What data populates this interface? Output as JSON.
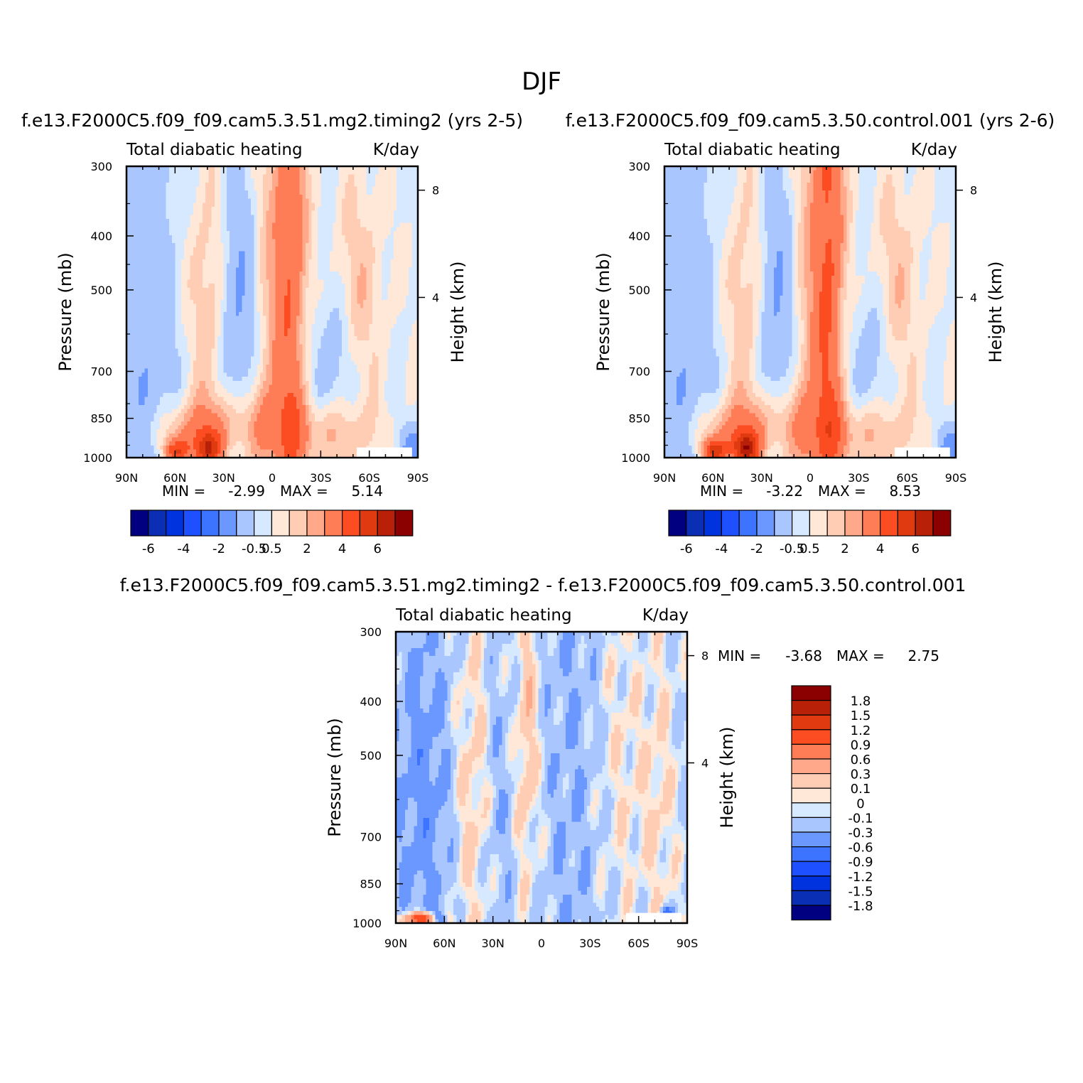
{
  "page_title": "DJF",
  "colors": {
    "scale": [
      "#000080",
      "#0a2fb4",
      "#0033dd",
      "#1e50ff",
      "#3d74ff",
      "#6b98ff",
      "#a9c6ff",
      "#d6e9ff",
      "#ffe8d8",
      "#ffcdb4",
      "#ffa98a",
      "#ff7d56",
      "#fc4d22",
      "#e03a10",
      "#b82008",
      "#8b0000"
    ]
  },
  "chart_data": [
    {
      "type": "heatmap",
      "id": "p1",
      "title": "f.e13.F2000C5.f09_f09.cam5.3.51.mg2.timing2 (yrs 2-5)",
      "subtitle_left": "Total diabatic heating",
      "subtitle_right": "K/day",
      "ylabel": "Pressure (mb)",
      "ylabel_right": "Height (km)",
      "x_ticks": [
        "90N",
        "60N",
        "30N",
        "0",
        "30S",
        "60S",
        "90S"
      ],
      "x_range": [
        90,
        -90
      ],
      "y_ticks": [
        "300",
        "400",
        "500",
        "700",
        "850",
        "1000"
      ],
      "y_range": [
        300,
        1000
      ],
      "y_right_ticks": [
        "8",
        "4"
      ],
      "grid": false,
      "stats": {
        "min_label": "MIN =",
        "min": "-2.99",
        "max_label": "MAX =",
        "max": "5.14"
      },
      "levels": [
        "-6",
        "-4",
        "-2",
        "-0.5",
        "0.5",
        "2",
        "4",
        "6"
      ],
      "legend": "bottom"
    },
    {
      "type": "heatmap",
      "id": "p2",
      "title": "f.e13.F2000C5.f09_f09.cam5.3.50.control.001 (yrs 2-6)",
      "subtitle_left": "Total diabatic heating",
      "subtitle_right": "K/day",
      "ylabel": "Pressure (mb)",
      "ylabel_right": "Height (km)",
      "x_ticks": [
        "90N",
        "60N",
        "30N",
        "0",
        "30S",
        "60S",
        "90S"
      ],
      "x_range": [
        90,
        -90
      ],
      "y_ticks": [
        "300",
        "400",
        "500",
        "700",
        "850",
        "1000"
      ],
      "y_range": [
        300,
        1000
      ],
      "y_right_ticks": [
        "8",
        "4"
      ],
      "grid": false,
      "stats": {
        "min_label": "MIN =",
        "min": "-3.22",
        "max_label": "MAX =",
        "max": "8.53"
      },
      "levels": [
        "-6",
        "-4",
        "-2",
        "-0.5",
        "0.5",
        "2",
        "4",
        "6"
      ],
      "legend": "bottom"
    },
    {
      "type": "heatmap",
      "id": "p3",
      "title": "f.e13.F2000C5.f09_f09.cam5.3.51.mg2.timing2 - f.e13.F2000C5.f09_f09.cam5.3.50.control.001",
      "subtitle_left": "Total diabatic heating",
      "subtitle_right": "K/day",
      "ylabel": "Pressure (mb)",
      "ylabel_right": "Height (km)",
      "x_ticks": [
        "90N",
        "60N",
        "30N",
        "0",
        "30S",
        "60S",
        "90S"
      ],
      "x_range": [
        90,
        -90
      ],
      "y_ticks": [
        "300",
        "400",
        "500",
        "700",
        "850",
        "1000"
      ],
      "y_range": [
        300,
        1000
      ],
      "y_right_ticks": [
        "8",
        "4"
      ],
      "grid": false,
      "stats": {
        "min_label": "MIN =",
        "min": "-3.68",
        "max_label": "MAX =",
        "max": "2.75"
      },
      "levels": [
        "1.8",
        "1.5",
        "1.2",
        "0.9",
        "0.6",
        "0.3",
        "0.1",
        "0",
        "-0.1",
        "-0.3",
        "-0.6",
        "-0.9",
        "-1.2",
        "-1.5",
        "-1.8"
      ],
      "legend": "right"
    }
  ]
}
